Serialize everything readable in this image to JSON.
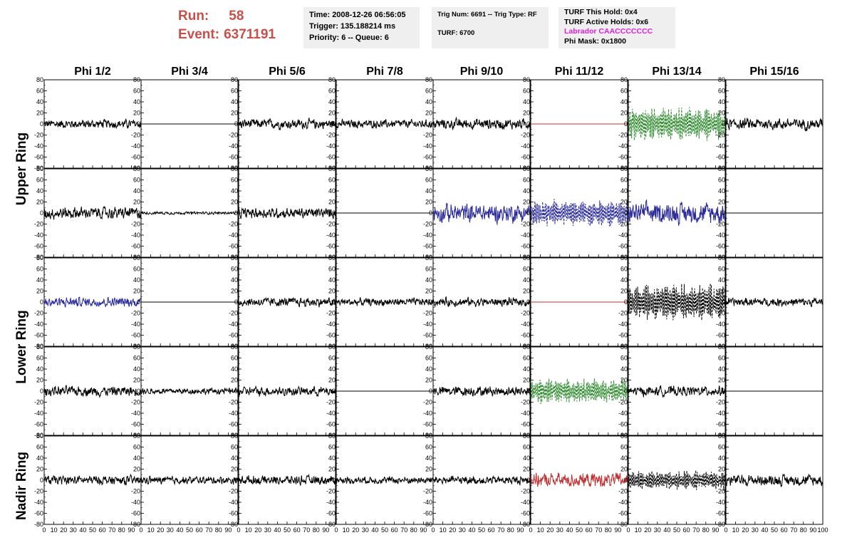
{
  "header": {
    "run_label": "Run:",
    "run_value": "58",
    "event_label": "Event:",
    "event_value": "6371191",
    "time": "Time: 2008-12-26 06:56:05",
    "trigger": "Trigger: 135.188214 ms",
    "priority": "Priority: 6 -- Queue: 6",
    "trig_num": "Trig Num: 6691 -- Trig Type: RF",
    "turf": "TURF: 6700",
    "turf_this_hold": "TURF This Hold: 0x4",
    "turf_active_holds": "TURF Active Holds: 0x6",
    "labrador": "Labrador CAACCCCCCC",
    "phi_mask": "Phi Mask: 0x1800"
  },
  "colors": {
    "run_text": "#c8504a",
    "labrador_text": "#e020e0",
    "trace_black": "#000000",
    "trace_blue": "#2a2a9a",
    "trace_green": "#2e8b2e",
    "trace_red": "#c03030",
    "panel_bg": "#efefef"
  },
  "chart_data": {
    "type": "line",
    "columns": [
      "Phi 1/2",
      "Phi 3/4",
      "Phi 5/6",
      "Phi 7/8",
      "Phi 9/10",
      "Phi 11/12",
      "Phi 13/14",
      "Phi 15/16"
    ],
    "ring_labels": [
      "Upper Ring",
      "Lower Ring",
      "Nadir Ring"
    ],
    "rows": 5,
    "xlim": [
      0,
      100
    ],
    "ylim": [
      -80,
      80
    ],
    "x_ticks": [
      0,
      10,
      20,
      30,
      40,
      50,
      60,
      70,
      80,
      90,
      100
    ],
    "x_tick_labels": [
      "0",
      "10",
      "20",
      "30",
      "40",
      "50",
      "60",
      "70",
      "80",
      "90",
      "100"
    ],
    "y_ticks": [
      80,
      60,
      40,
      20,
      0,
      -20,
      -40,
      -60,
      -80
    ],
    "y_tick_labels": [
      "80",
      "60",
      "40",
      "20",
      "0",
      "-20",
      "-40",
      "-60",
      "-80"
    ],
    "traces": [
      [
        "black:noise:13",
        "black:flat:0",
        "black:noise:14",
        "black:noise:12",
        "black:noise:15",
        "red:flat:0",
        "green:dashed:33",
        "black:noise:16"
      ],
      [
        "black:noise:17",
        "black:noise:4",
        "black:noise:15",
        "black:flat:0",
        "blue:noise:27",
        "blue:dashed:26",
        "blue:noise:30",
        "black:flat:0"
      ],
      [
        "blue:noise:14",
        "black:flat:0",
        "black:noise:13",
        "black:noise:11",
        "black:noise:12",
        "red:flat:0",
        "black:dashed:36",
        "black:noise:12"
      ],
      [
        "black:noise:14",
        "black:noise:9",
        "black:noise:13",
        "black:flat:0",
        "black:noise:14",
        "green:dashed:25",
        "black:noise:14",
        "black:flat:0"
      ],
      [
        "black:noise:13",
        "black:noise:11",
        "black:noise:13",
        "black:noise:10",
        "black:noise:12",
        "red:noise:20",
        "black:dashed:20",
        "black:noise:16"
      ]
    ]
  }
}
